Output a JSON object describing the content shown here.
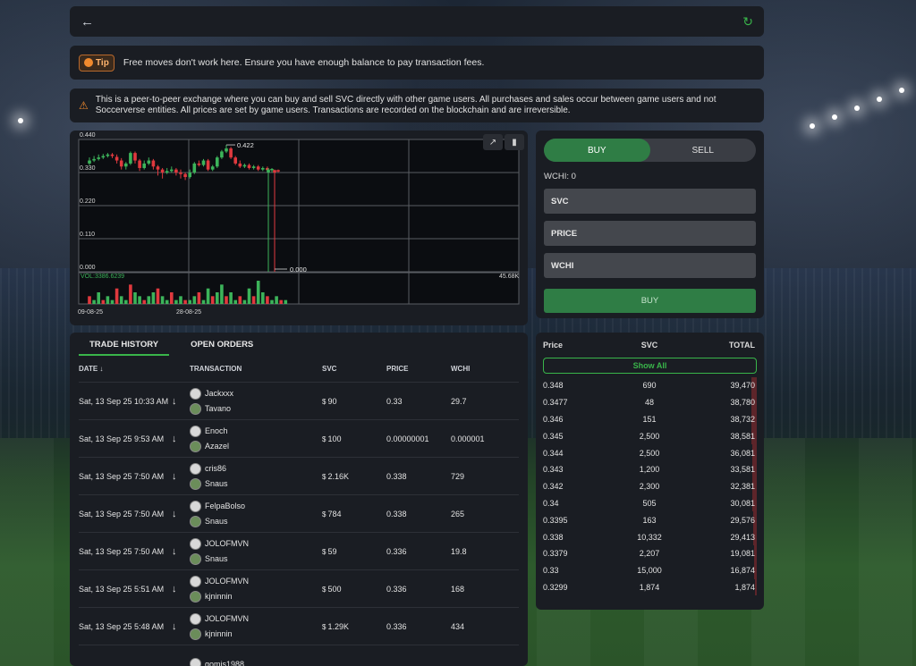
{
  "tip": {
    "badge": "Tip",
    "text": "Free moves don't work here. Ensure you have enough balance to pay transaction fees."
  },
  "warning": {
    "text": "This is a peer-to-peer exchange where you can buy and sell SVC directly with other game users. All purchases and sales occur between game users and not Soccerverse entities. All prices are set by game users. Transactions are recorded on the blockchain and are irreversible."
  },
  "chart_data": {
    "type": "candlestick",
    "y_ticks": [
      "0.440",
      "0.330",
      "0.220",
      "0.110",
      "0.000"
    ],
    "ylim": [
      0,
      0.44
    ],
    "x_ticks": [
      "09-08-25",
      "28-08-25"
    ],
    "high_label": "0.422",
    "low_label": "0.000",
    "volume_label": "VOL:3386.6239",
    "volume_max_label": "45.68K",
    "colors": {
      "up": "#3cb35a",
      "down": "#e0393e"
    },
    "candles": [
      {
        "o": 0.36,
        "c": 0.37,
        "h": 0.38,
        "l": 0.355
      },
      {
        "o": 0.37,
        "c": 0.375,
        "h": 0.385,
        "l": 0.365
      },
      {
        "o": 0.375,
        "c": 0.38,
        "h": 0.39,
        "l": 0.37
      },
      {
        "o": 0.38,
        "c": 0.385,
        "h": 0.392,
        "l": 0.375
      },
      {
        "o": 0.385,
        "c": 0.39,
        "h": 0.395,
        "l": 0.38
      },
      {
        "o": 0.39,
        "c": 0.385,
        "h": 0.395,
        "l": 0.378
      },
      {
        "o": 0.382,
        "c": 0.37,
        "h": 0.39,
        "l": 0.36
      },
      {
        "o": 0.37,
        "c": 0.35,
        "h": 0.378,
        "l": 0.34
      },
      {
        "o": 0.35,
        "c": 0.36,
        "h": 0.365,
        "l": 0.34
      },
      {
        "o": 0.36,
        "c": 0.395,
        "h": 0.4,
        "l": 0.355
      },
      {
        "o": 0.395,
        "c": 0.37,
        "h": 0.4,
        "l": 0.36
      },
      {
        "o": 0.37,
        "c": 0.345,
        "h": 0.375,
        "l": 0.335
      },
      {
        "o": 0.345,
        "c": 0.36,
        "h": 0.37,
        "l": 0.34
      },
      {
        "o": 0.36,
        "c": 0.37,
        "h": 0.38,
        "l": 0.355
      },
      {
        "o": 0.37,
        "c": 0.35,
        "h": 0.375,
        "l": 0.34
      },
      {
        "o": 0.35,
        "c": 0.34,
        "h": 0.355,
        "l": 0.32
      },
      {
        "o": 0.34,
        "c": 0.33,
        "h": 0.345,
        "l": 0.31
      },
      {
        "o": 0.33,
        "c": 0.335,
        "h": 0.345,
        "l": 0.325
      },
      {
        "o": 0.335,
        "c": 0.34,
        "h": 0.35,
        "l": 0.33
      },
      {
        "o": 0.34,
        "c": 0.33,
        "h": 0.345,
        "l": 0.32
      },
      {
        "o": 0.33,
        "c": 0.325,
        "h": 0.34,
        "l": 0.31
      },
      {
        "o": 0.325,
        "c": 0.315,
        "h": 0.33,
        "l": 0.305
      },
      {
        "o": 0.315,
        "c": 0.33,
        "h": 0.34,
        "l": 0.31
      },
      {
        "o": 0.33,
        "c": 0.36,
        "h": 0.365,
        "l": 0.325
      },
      {
        "o": 0.36,
        "c": 0.355,
        "h": 0.37,
        "l": 0.35
      },
      {
        "o": 0.355,
        "c": 0.37,
        "h": 0.375,
        "l": 0.35
      },
      {
        "o": 0.37,
        "c": 0.34,
        "h": 0.375,
        "l": 0.335
      },
      {
        "o": 0.34,
        "c": 0.35,
        "h": 0.355,
        "l": 0.335
      },
      {
        "o": 0.35,
        "c": 0.38,
        "h": 0.385,
        "l": 0.345
      },
      {
        "o": 0.38,
        "c": 0.4,
        "h": 0.405,
        "l": 0.375
      },
      {
        "o": 0.4,
        "c": 0.41,
        "h": 0.422,
        "l": 0.395
      },
      {
        "o": 0.41,
        "c": 0.38,
        "h": 0.415,
        "l": 0.375
      },
      {
        "o": 0.38,
        "c": 0.36,
        "h": 0.385,
        "l": 0.355
      },
      {
        "o": 0.36,
        "c": 0.35,
        "h": 0.37,
        "l": 0.345
      },
      {
        "o": 0.35,
        "c": 0.355,
        "h": 0.36,
        "l": 0.345
      },
      {
        "o": 0.355,
        "c": 0.345,
        "h": 0.36,
        "l": 0.34
      },
      {
        "o": 0.345,
        "c": 0.35,
        "h": 0.355,
        "l": 0.34
      },
      {
        "o": 0.35,
        "c": 0.34,
        "h": 0.355,
        "l": 0.335
      },
      {
        "o": 0.34,
        "c": 0.345,
        "h": 0.35,
        "l": 0.335
      },
      {
        "o": 0.345,
        "c": 0.338,
        "h": 0.35,
        "l": 0.335
      },
      {
        "o": 0.338,
        "c": 0.342,
        "h": 0.345,
        "l": 0.33
      },
      {
        "o": 0.34,
        "c": 0.33,
        "h": 0.345,
        "l": 0.0
      },
      {
        "o": 0.33,
        "c": 0.338,
        "h": 0.34,
        "l": 0.0
      },
      {
        "o": 0.338,
        "c": 0.336,
        "h": 0.34,
        "l": 0.33
      }
    ],
    "volumes": [
      2,
      1,
      3,
      1,
      2,
      1,
      4,
      2,
      1,
      5,
      3,
      2,
      1,
      2,
      3,
      4,
      2,
      1,
      3,
      1,
      2,
      1,
      1,
      2,
      3,
      1,
      4,
      2,
      3,
      5,
      2,
      3,
      1,
      2,
      1,
      4,
      2,
      6,
      3,
      2,
      1,
      2,
      1,
      1
    ]
  },
  "order_form": {
    "buy_tab": "BUY",
    "sell_tab": "SELL",
    "balance": "WCHI: 0",
    "svc_label": "SVC",
    "price_label": "PRICE",
    "wchi_label": "WCHI",
    "submit": "BUY"
  },
  "history": {
    "tab_trade": "TRADE HISTORY",
    "tab_orders": "OPEN ORDERS",
    "headers": {
      "date": "DATE",
      "transaction": "TRANSACTION",
      "svc": "SVC",
      "price": "PRICE",
      "wchi": "WCHI"
    },
    "rows": [
      {
        "date": "Sat, 13 Sep 25 10:33 AM",
        "buyer": "Jackxxx",
        "seller": "Tavano",
        "svc": "90",
        "price": "0.33",
        "wchi": "29.7"
      },
      {
        "date": "Sat, 13 Sep 25 9:53 AM",
        "buyer": "Enoch",
        "seller": "Azazel",
        "svc": "100",
        "price": "0.00000001",
        "wchi": "0.000001"
      },
      {
        "date": "Sat, 13 Sep 25 7:50 AM",
        "buyer": "cris86",
        "seller": "Snaus",
        "svc": "2.16K",
        "price": "0.338",
        "wchi": "729"
      },
      {
        "date": "Sat, 13 Sep 25 7:50 AM",
        "buyer": "FelpaBolso",
        "seller": "Snaus",
        "svc": "784",
        "price": "0.338",
        "wchi": "265"
      },
      {
        "date": "Sat, 13 Sep 25 7:50 AM",
        "buyer": "JOLOFMVN",
        "seller": "Snaus",
        "svc": "59",
        "price": "0.336",
        "wchi": "19.8"
      },
      {
        "date": "Sat, 13 Sep 25 5:51 AM",
        "buyer": "JOLOFMVN",
        "seller": "kjninnin",
        "svc": "500",
        "price": "0.336",
        "wchi": "168"
      },
      {
        "date": "Sat, 13 Sep 25 5:48 AM",
        "buyer": "JOLOFMVN",
        "seller": "kjninnin",
        "svc": "1.29K",
        "price": "0.336",
        "wchi": "434"
      },
      {
        "date": "",
        "buyer": "gomis1988",
        "seller": "",
        "svc": "",
        "price": "",
        "wchi": ""
      }
    ]
  },
  "orderbook": {
    "headers": {
      "price": "Price",
      "svc": "SVC",
      "total": "TOTAL"
    },
    "show_all": "Show All",
    "rows": [
      {
        "price": "0.348",
        "svc": "690",
        "total": "39,470",
        "depth": 1.0
      },
      {
        "price": "0.3477",
        "svc": "48",
        "total": "38,780",
        "depth": 0.98
      },
      {
        "price": "0.346",
        "svc": "151",
        "total": "38,732",
        "depth": 0.98
      },
      {
        "price": "0.345",
        "svc": "2,500",
        "total": "38,581",
        "depth": 0.98
      },
      {
        "price": "0.344",
        "svc": "2,500",
        "total": "36,081",
        "depth": 0.91
      },
      {
        "price": "0.343",
        "svc": "1,200",
        "total": "33,581",
        "depth": 0.85
      },
      {
        "price": "0.342",
        "svc": "2,300",
        "total": "32,381",
        "depth": 0.82
      },
      {
        "price": "0.34",
        "svc": "505",
        "total": "30,081",
        "depth": 0.76
      },
      {
        "price": "0.3395",
        "svc": "163",
        "total": "29,576",
        "depth": 0.75
      },
      {
        "price": "0.338",
        "svc": "10,332",
        "total": "29,413",
        "depth": 0.75
      },
      {
        "price": "0.3379",
        "svc": "2,207",
        "total": "19,081",
        "depth": 0.48
      },
      {
        "price": "0.33",
        "svc": "15,000",
        "total": "16,874",
        "depth": 0.43
      },
      {
        "price": "0.3299",
        "svc": "1,874",
        "total": "1,874",
        "depth": 0.05
      }
    ]
  }
}
